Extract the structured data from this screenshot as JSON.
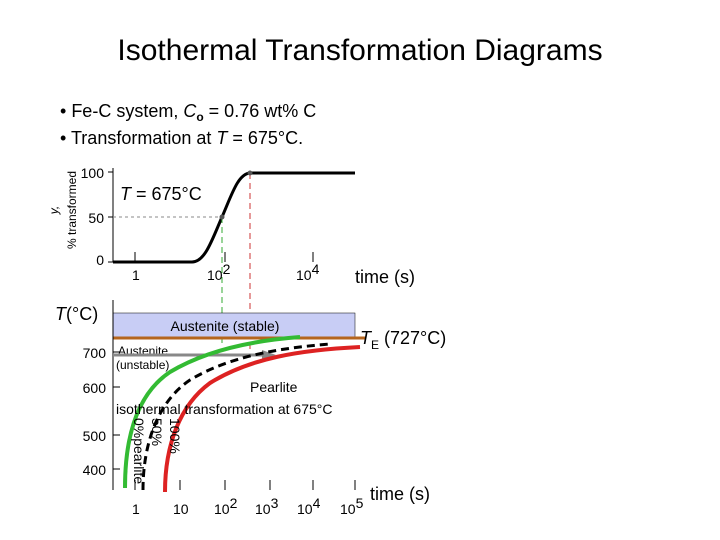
{
  "title": "Isothermal Transformation Diagrams",
  "bullets": [
    {
      "parts": [
        "Fe-C system, ",
        "C",
        "o",
        " = 0.76 wt% C"
      ]
    },
    {
      "parts": [
        "Transformation at ",
        "T",
        " = 675°C."
      ]
    }
  ],
  "top_plot": {
    "y_label": [
      "y,",
      "% transformed"
    ],
    "y_ticks": [
      "100",
      "50",
      "0"
    ],
    "annotation": [
      "T",
      " = 675°C"
    ],
    "x_ticks": [
      [
        "1"
      ],
      [
        "10",
        "2"
      ],
      [
        "10",
        "4"
      ]
    ],
    "x_label": "time (s)"
  },
  "bottom_plot": {
    "y_label": [
      "T",
      "(°C)"
    ],
    "y_ticks": [
      "700",
      "600",
      "500",
      "400"
    ],
    "labels": {
      "austenite_stable": "Austenite (stable)",
      "te": [
        "T",
        "E",
        " (727°C)"
      ],
      "austenite_unstable": [
        "Austenite",
        "(unstable)"
      ],
      "pearlite": "Pearlite",
      "isothermal": "isothermal transformation at 675°C",
      "curve_100": "100%",
      "curve_50": "50%",
      "curve_0": "0%pearlite"
    },
    "x_ticks": [
      [
        "1"
      ],
      [
        "10"
      ],
      [
        "10",
        "2"
      ],
      [
        "10",
        "3"
      ],
      [
        "10",
        "4"
      ],
      [
        "10",
        "5"
      ]
    ],
    "x_label": "time (s)"
  }
}
